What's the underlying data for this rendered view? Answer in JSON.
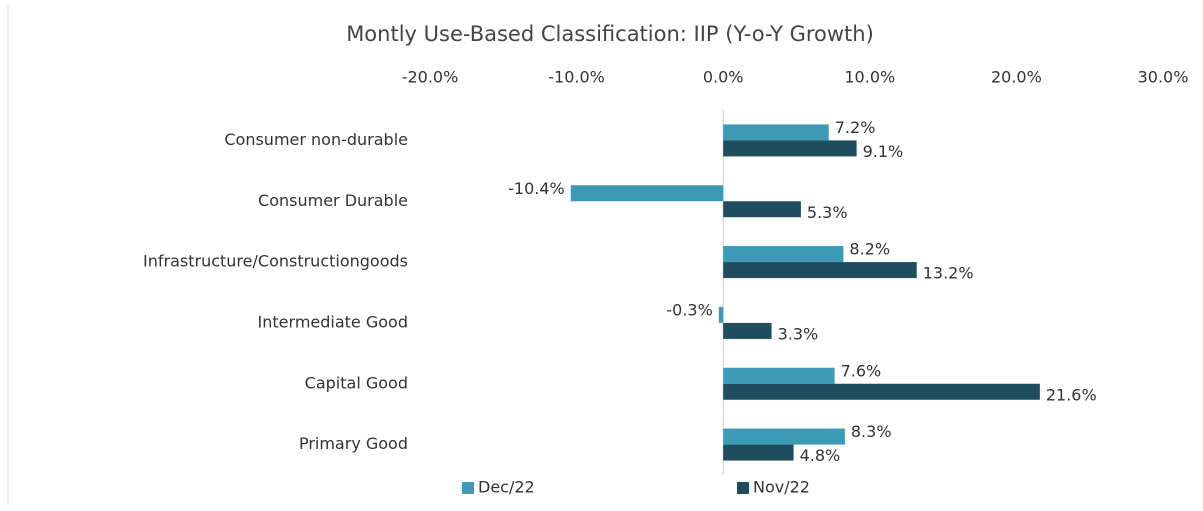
{
  "chart_data": {
    "type": "hbar",
    "title": "Montly Use-Based Classification: IIP (Y-o-Y Growth)",
    "categories": [
      "Consumer non-durable",
      "Consumer Durable",
      "Infrastructure/Constructiongoods",
      "Intermediate Good",
      "Capital Good",
      "Primary Good"
    ],
    "series": [
      {
        "name": "Dec/22",
        "color": "#3c9ab6",
        "values": [
          7.2,
          -10.4,
          8.2,
          -0.3,
          7.6,
          8.3
        ],
        "value_labels": [
          "7.2%",
          "-10.4%",
          "8.2%",
          "-0.3%",
          "7.6%",
          "8.3%"
        ]
      },
      {
        "name": "Nov/22",
        "color": "#1d4d5e",
        "values": [
          9.1,
          5.3,
          13.2,
          3.3,
          21.6,
          4.8
        ],
        "value_labels": [
          "9.1%",
          "5.3%",
          "13.2%",
          "3.3%",
          "21.6%",
          "4.8%"
        ]
      }
    ],
    "xlim": [
      -20,
      30
    ],
    "xticks": [
      {
        "value": -20,
        "label": "-20.0%"
      },
      {
        "value": -10,
        "label": "-10.0%"
      },
      {
        "value": 0,
        "label": "0.0%"
      },
      {
        "value": 10,
        "label": "10.0%"
      },
      {
        "value": 20,
        "label": "20.0%"
      },
      {
        "value": 30,
        "label": "30.0%"
      }
    ],
    "legend": "bottom"
  }
}
